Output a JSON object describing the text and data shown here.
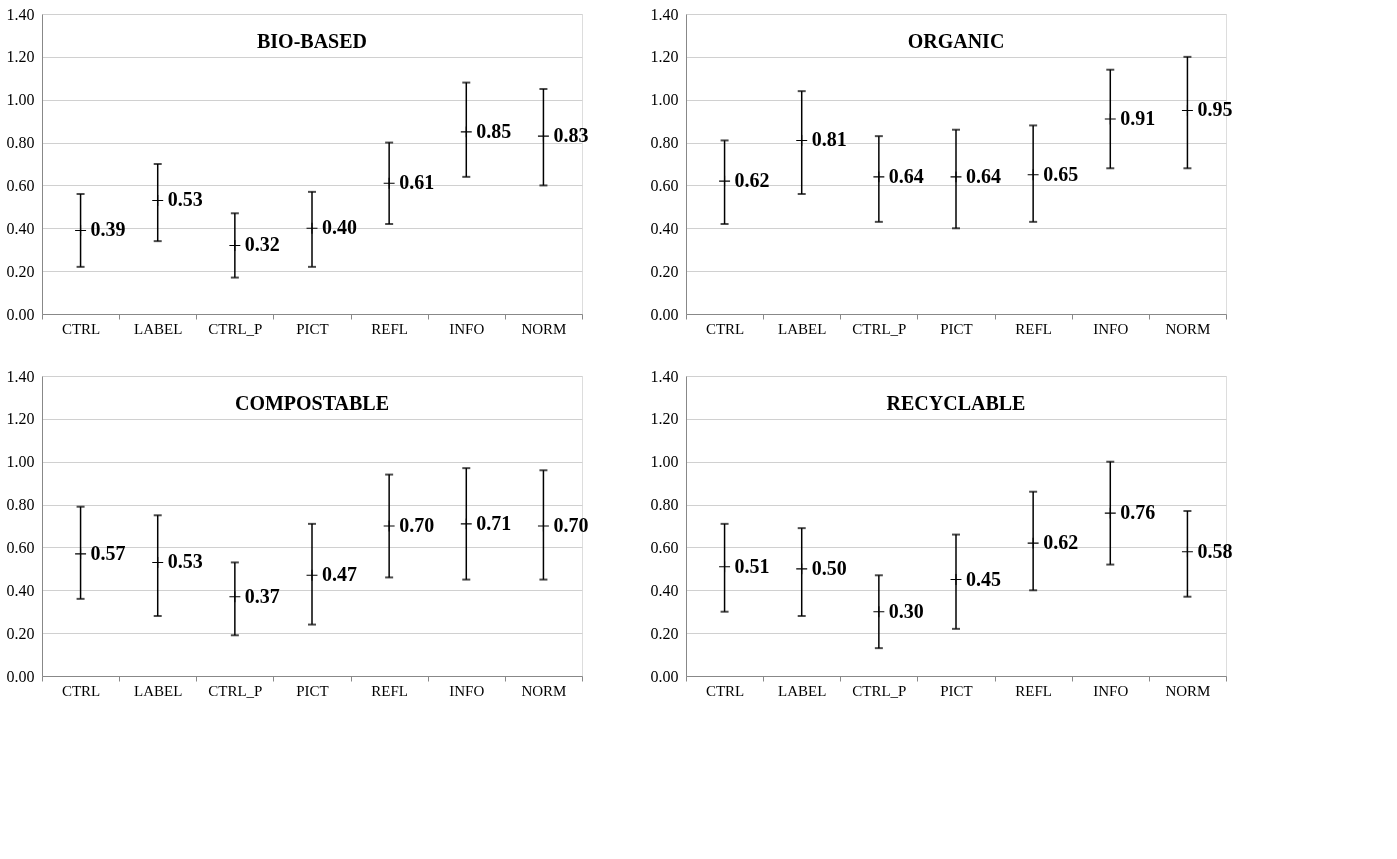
{
  "chart_data": [
    {
      "type": "scatter",
      "title": "BIO-BASED",
      "marker": "cross",
      "categories": [
        "CTRL",
        "LABEL",
        "CTRL_P",
        "PICT",
        "REFL",
        "INFO",
        "NORM"
      ],
      "values": [
        0.39,
        0.53,
        0.32,
        0.4,
        0.61,
        0.85,
        0.83
      ],
      "value_labels": [
        "0.39",
        "0.53",
        "0.32",
        "0.40",
        "0.61",
        "0.85",
        "0.83"
      ],
      "errors": [
        [
          0.22,
          0.56
        ],
        [
          0.34,
          0.7
        ],
        [
          0.17,
          0.47
        ],
        [
          0.22,
          0.57
        ],
        [
          0.42,
          0.8
        ],
        [
          0.64,
          1.08
        ],
        [
          0.6,
          1.05
        ]
      ],
      "color": "#000000",
      "ylim": [
        0,
        1.4
      ],
      "yticks": [
        {
          "value": 0,
          "label": "0.00"
        },
        {
          "value": 0.2,
          "label": "0.20"
        },
        {
          "value": 0.4,
          "label": "0.40"
        },
        {
          "value": 0.6,
          "label": "0.60"
        },
        {
          "value": 0.8,
          "label": "0.80"
        },
        {
          "value": 1.0,
          "label": "1.00"
        },
        {
          "value": 1.2,
          "label": "1.20"
        },
        {
          "value": 1.4,
          "label": "1.40"
        }
      ],
      "grid": "y"
    },
    {
      "type": "scatter",
      "title": "ORGANIC",
      "marker": "cross",
      "categories": [
        "CTRL",
        "LABEL",
        "CTRL_P",
        "PICT",
        "REFL",
        "INFO",
        "NORM"
      ],
      "values": [
        0.62,
        0.81,
        0.64,
        0.64,
        0.65,
        0.91,
        0.95
      ],
      "value_labels": [
        "0.62",
        "0.81",
        "0.64",
        "0.64",
        "0.65",
        "0.91",
        "0.95"
      ],
      "errors": [
        [
          0.42,
          0.81
        ],
        [
          0.56,
          1.04
        ],
        [
          0.43,
          0.83
        ],
        [
          0.4,
          0.86
        ],
        [
          0.43,
          0.88
        ],
        [
          0.68,
          1.14
        ],
        [
          0.68,
          1.2
        ]
      ],
      "color": "#000000",
      "ylim": [
        0,
        1.4
      ],
      "yticks": [
        {
          "value": 0,
          "label": "0.00"
        },
        {
          "value": 0.2,
          "label": "0.20"
        },
        {
          "value": 0.4,
          "label": "0.40"
        },
        {
          "value": 0.6,
          "label": "0.60"
        },
        {
          "value": 0.8,
          "label": "0.80"
        },
        {
          "value": 1.0,
          "label": "1.00"
        },
        {
          "value": 1.2,
          "label": "1.20"
        },
        {
          "value": 1.4,
          "label": "1.40"
        }
      ],
      "grid": "y"
    },
    {
      "type": "scatter",
      "title": "COMPOSTABLE",
      "marker": "cross",
      "categories": [
        "CTRL",
        "LABEL",
        "CTRL_P",
        "PICT",
        "REFL",
        "INFO",
        "NORM"
      ],
      "values": [
        0.57,
        0.53,
        0.37,
        0.47,
        0.7,
        0.71,
        0.7
      ],
      "value_labels": [
        "0.57",
        "0.53",
        "0.37",
        "0.47",
        "0.70",
        "0.71",
        "0.70"
      ],
      "errors": [
        [
          0.36,
          0.79
        ],
        [
          0.28,
          0.75
        ],
        [
          0.19,
          0.53
        ],
        [
          0.24,
          0.71
        ],
        [
          0.46,
          0.94
        ],
        [
          0.45,
          0.97
        ],
        [
          0.45,
          0.96
        ]
      ],
      "color": "#000000",
      "ylim": [
        0,
        1.4
      ],
      "yticks": [
        {
          "value": 0,
          "label": "0.00"
        },
        {
          "value": 0.2,
          "label": "0.20"
        },
        {
          "value": 0.4,
          "label": "0.40"
        },
        {
          "value": 0.6,
          "label": "0.60"
        },
        {
          "value": 0.8,
          "label": "0.80"
        },
        {
          "value": 1.0,
          "label": "1.00"
        },
        {
          "value": 1.2,
          "label": "1.20"
        },
        {
          "value": 1.4,
          "label": "1.40"
        }
      ],
      "grid": "y"
    },
    {
      "type": "scatter",
      "title": "RECYCLABLE",
      "marker": "cross",
      "categories": [
        "CTRL",
        "LABEL",
        "CTRL_P",
        "PICT",
        "REFL",
        "INFO",
        "NORM"
      ],
      "values": [
        0.51,
        0.5,
        0.3,
        0.45,
        0.62,
        0.76,
        0.58
      ],
      "value_labels": [
        "0.51",
        "0.50",
        "0.30",
        "0.45",
        "0.62",
        "0.76",
        "0.58"
      ],
      "errors": [
        [
          0.3,
          0.71
        ],
        [
          0.28,
          0.69
        ],
        [
          0.13,
          0.47
        ],
        [
          0.22,
          0.66
        ],
        [
          0.4,
          0.86
        ],
        [
          0.52,
          1.0
        ],
        [
          0.37,
          0.77
        ]
      ],
      "color": "#000000",
      "ylim": [
        0,
        1.4
      ],
      "yticks": [
        {
          "value": 0,
          "label": "0.00"
        },
        {
          "value": 0.2,
          "label": "0.20"
        },
        {
          "value": 0.4,
          "label": "0.40"
        },
        {
          "value": 0.6,
          "label": "0.60"
        },
        {
          "value": 0.8,
          "label": "0.80"
        },
        {
          "value": 1.0,
          "label": "1.00"
        },
        {
          "value": 1.2,
          "label": "1.20"
        },
        {
          "value": 1.4,
          "label": "1.40"
        }
      ],
      "grid": "y"
    }
  ]
}
